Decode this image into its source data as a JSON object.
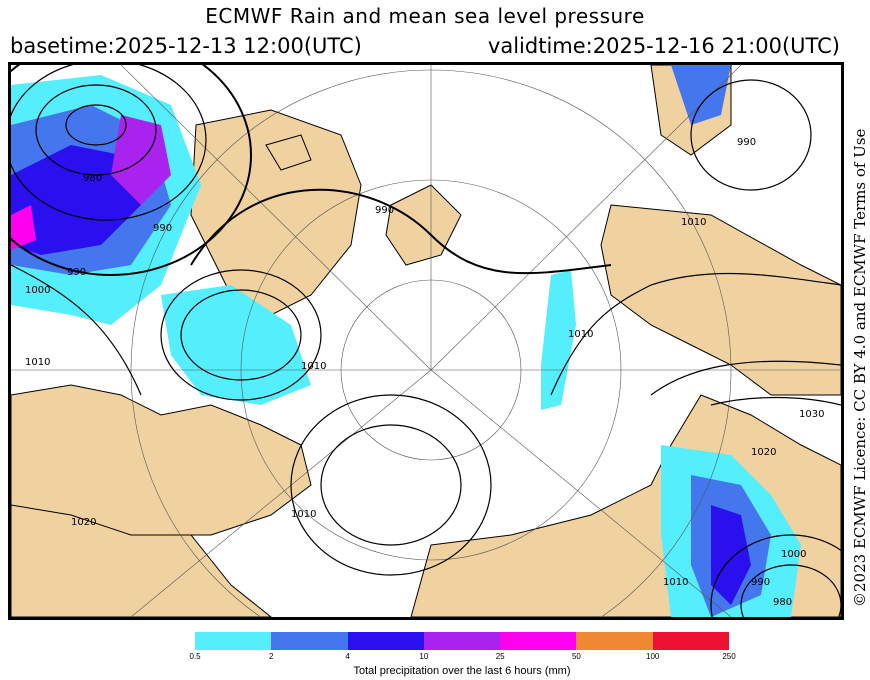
{
  "header": {
    "title": "ECMWF Rain and mean sea level pressure",
    "basetime": "basetime:2025-12-13 12:00(UTC)",
    "validtime": "validtime:2025-12-16 21:00(UTC)"
  },
  "licence": "©2023 ECMWF  Licence: CC BY 4.0 and ECMWF  Terms of Use",
  "legend": {
    "caption": "Total precipitation over the last 6 hours (mm)",
    "ticks": [
      "0.5",
      "2",
      "4",
      "10",
      "25",
      "50",
      "100",
      "250"
    ],
    "colors": [
      "#55eefc",
      "#4477ee",
      "#2a10ee",
      "#aa22ee",
      "#ff00ee",
      "#ee8833",
      "#ee1133"
    ]
  },
  "map": {
    "land_color": "#f0d2a0",
    "isobar_labels": [
      "980",
      "990",
      "990",
      "990",
      "1000",
      "1010",
      "1010",
      "1010",
      "1010",
      "1010",
      "1020",
      "1020",
      "1030",
      "1000",
      "990",
      "980",
      "1010",
      "990"
    ]
  }
}
